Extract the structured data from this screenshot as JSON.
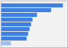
{
  "chart_data": {
    "type": "bar",
    "orientation": "horizontal",
    "categories": [
      null,
      null,
      null,
      null,
      null,
      null,
      null,
      null,
      null
    ],
    "values": [
      4200,
      3400,
      2450,
      2150,
      2050,
      1950,
      1850,
      1750,
      700
    ],
    "colors": [
      "#4080e0",
      "#4080e0",
      "#4080e0",
      "#4080e0",
      "#4080e0",
      "#4080e0",
      "#4080e0",
      "#4080e0",
      "#a0c0f0"
    ],
    "xlim": [
      0,
      4500
    ],
    "tick_labels": false,
    "grid": false
  }
}
